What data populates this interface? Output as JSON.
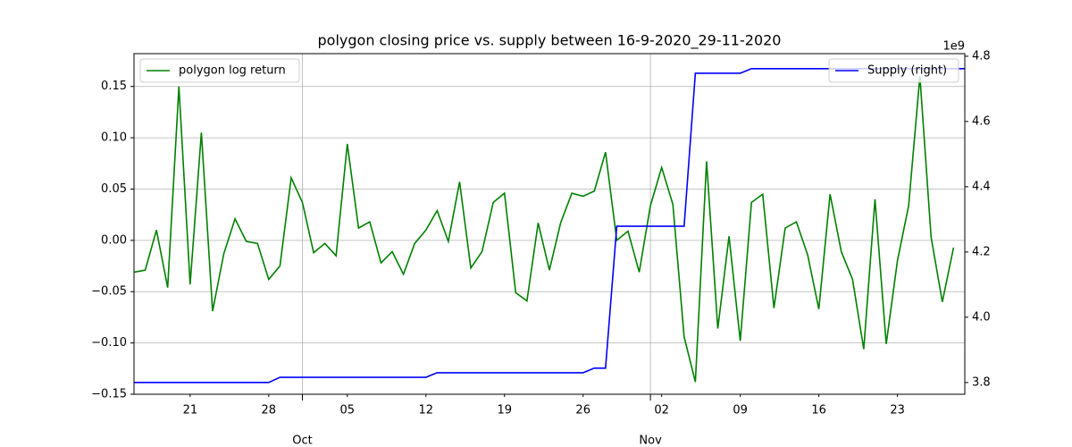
{
  "chart_data": {
    "type": "line",
    "title": "polygon closing price vs. supply between 16-9-2020_29-11-2020",
    "x": [
      "2020-09-16",
      "2020-09-17",
      "2020-09-18",
      "2020-09-19",
      "2020-09-20",
      "2020-09-21",
      "2020-09-22",
      "2020-09-23",
      "2020-09-24",
      "2020-09-25",
      "2020-09-26",
      "2020-09-27",
      "2020-09-28",
      "2020-09-29",
      "2020-09-30",
      "2020-10-01",
      "2020-10-02",
      "2020-10-03",
      "2020-10-04",
      "2020-10-05",
      "2020-10-06",
      "2020-10-07",
      "2020-10-08",
      "2020-10-09",
      "2020-10-10",
      "2020-10-11",
      "2020-10-12",
      "2020-10-13",
      "2020-10-14",
      "2020-10-15",
      "2020-10-16",
      "2020-10-17",
      "2020-10-18",
      "2020-10-19",
      "2020-10-20",
      "2020-10-21",
      "2020-10-22",
      "2020-10-23",
      "2020-10-24",
      "2020-10-25",
      "2020-10-26",
      "2020-10-27",
      "2020-10-28",
      "2020-10-29",
      "2020-10-30",
      "2020-10-31",
      "2020-11-01",
      "2020-11-02",
      "2020-11-03",
      "2020-11-04",
      "2020-11-05",
      "2020-11-06",
      "2020-11-07",
      "2020-11-08",
      "2020-11-09",
      "2020-11-10",
      "2020-11-11",
      "2020-11-12",
      "2020-11-13",
      "2020-11-14",
      "2020-11-15",
      "2020-11-16",
      "2020-11-17",
      "2020-11-18",
      "2020-11-19",
      "2020-11-20",
      "2020-11-21",
      "2020-11-22",
      "2020-11-23",
      "2020-11-24",
      "2020-11-25",
      "2020-11-26",
      "2020-11-27",
      "2020-11-28",
      "2020-11-29"
    ],
    "series": [
      {
        "name": "polygon log return",
        "color": "green",
        "axis": "y",
        "values": [
          -0.031,
          -0.029,
          0.01,
          -0.046,
          0.15,
          -0.043,
          0.105,
          -0.069,
          -0.013,
          0.021,
          -0.001,
          -0.003,
          -0.038,
          -0.025,
          0.061,
          0.037,
          -0.012,
          -0.003,
          -0.015,
          0.094,
          0.012,
          0.018,
          -0.022,
          -0.011,
          -0.033,
          -0.003,
          0.01,
          0.029,
          -0.001,
          0.057,
          -0.027,
          -0.011,
          0.037,
          0.046,
          -0.051,
          -0.059,
          0.017,
          -0.029,
          0.017,
          0.046,
          0.043,
          0.048,
          0.086,
          0.0,
          0.009,
          -0.031,
          0.034,
          0.071,
          0.035,
          -0.094,
          -0.138,
          0.077,
          -0.086,
          0.004,
          -0.098,
          0.037,
          0.045,
          -0.066,
          0.012,
          0.018,
          -0.014,
          -0.067,
          0.045,
          -0.011,
          -0.038,
          -0.106,
          0.04,
          -0.101,
          -0.02,
          0.034,
          0.16,
          0.003,
          -0.06,
          -0.007,
          null
        ]
      },
      {
        "name": "Supply (right)",
        "color": "blue",
        "axis": "y2",
        "values": [
          3.8,
          3.8,
          3.8,
          3.8,
          3.8,
          3.8,
          3.8,
          3.8,
          3.8,
          3.8,
          3.8,
          3.8,
          3.8,
          3.816,
          3.816,
          3.816,
          3.816,
          3.816,
          3.816,
          3.816,
          3.816,
          3.816,
          3.816,
          3.816,
          3.816,
          3.816,
          3.816,
          3.83,
          3.83,
          3.83,
          3.83,
          3.83,
          3.83,
          3.83,
          3.83,
          3.83,
          3.83,
          3.83,
          3.83,
          3.83,
          3.83,
          3.844,
          3.844,
          4.279,
          4.279,
          4.279,
          4.279,
          4.279,
          4.279,
          4.279,
          4.748,
          4.748,
          4.748,
          4.748,
          4.748,
          4.762,
          4.762,
          4.762,
          4.762,
          4.762,
          4.762,
          4.762,
          4.762,
          4.762,
          4.762,
          4.762,
          4.762,
          4.762,
          4.762,
          4.762,
          4.762,
          4.762,
          4.762,
          4.762,
          4.762
        ]
      }
    ],
    "xlim": [
      "2020-09-16",
      "2020-11-29"
    ],
    "xticks": [
      {
        "value": "2020-09-21",
        "label": "21"
      },
      {
        "value": "2020-09-28",
        "label": "28"
      },
      {
        "value": "2020-10-05",
        "label": "05"
      },
      {
        "value": "2020-10-12",
        "label": "12"
      },
      {
        "value": "2020-10-19",
        "label": "19"
      },
      {
        "value": "2020-10-26",
        "label": "26"
      },
      {
        "value": "2020-11-02",
        "label": "02"
      },
      {
        "value": "2020-11-09",
        "label": "09"
      },
      {
        "value": "2020-11-16",
        "label": "16"
      },
      {
        "value": "2020-11-23",
        "label": "23"
      }
    ],
    "x_major_ticks": [
      {
        "value": "2020-10-01",
        "label": "Oct"
      },
      {
        "value": "2020-11-01",
        "label": "Nov"
      }
    ],
    "ylim": [
      -0.15,
      0.182
    ],
    "yticks": [
      {
        "value": -0.15,
        "label": "−0.15"
      },
      {
        "value": -0.1,
        "label": "−0.10"
      },
      {
        "value": -0.05,
        "label": "−0.05"
      },
      {
        "value": 0,
        "label": "0.00"
      },
      {
        "value": 0.05,
        "label": "0.05"
      },
      {
        "value": 0.1,
        "label": "0.10"
      },
      {
        "value": 0.15,
        "label": "0.15"
      }
    ],
    "y2lim": [
      3.764,
      4.808
    ],
    "y2ticks": [
      3.8,
      {
        "value": 4,
        "label": "4.0"
      },
      4.2,
      4.4,
      4.6,
      4.8
    ],
    "y2_offset_label": "1e9",
    "grid": true
  }
}
